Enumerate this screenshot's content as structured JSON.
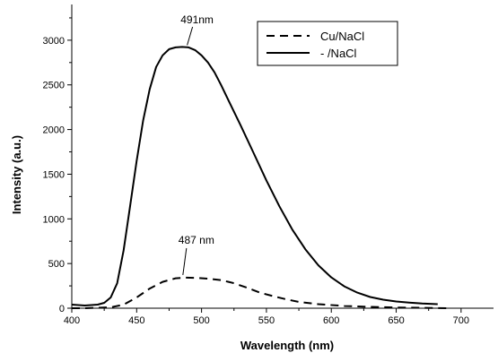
{
  "chart_data": {
    "type": "line",
    "title": "",
    "xlabel": "Wavelength (nm)",
    "ylabel": "Intensity (a.u.)",
    "xlim": [
      400,
      725
    ],
    "ylim": [
      0,
      3400
    ],
    "xticks": [
      400,
      450,
      500,
      550,
      600,
      650,
      700
    ],
    "yticks": [
      0,
      500,
      1000,
      1500,
      2000,
      2500,
      3000
    ],
    "grid": false,
    "legend_position": "top-right",
    "series": [
      {
        "name": "Cu/NaCl",
        "style": "dashed",
        "x": [
          400,
          410,
          420,
          430,
          440,
          450,
          460,
          470,
          480,
          487,
          495,
          505,
          515,
          525,
          535,
          545,
          555,
          565,
          575,
          590,
          610,
          630,
          650,
          670,
          690
        ],
        "y": [
          0,
          0,
          5,
          10,
          40,
          120,
          220,
          295,
          335,
          342,
          340,
          330,
          315,
          280,
          230,
          175,
          135,
          100,
          70,
          45,
          25,
          15,
          8,
          4,
          0
        ]
      },
      {
        "name": "- /NaCl",
        "style": "solid",
        "x": [
          400,
          410,
          420,
          425,
          430,
          435,
          440,
          445,
          450,
          455,
          460,
          465,
          470,
          475,
          480,
          485,
          490,
          495,
          500,
          505,
          510,
          515,
          520,
          530,
          540,
          550,
          560,
          570,
          580,
          590,
          600,
          610,
          620,
          630,
          640,
          650,
          660,
          670,
          682
        ],
        "y": [
          40,
          30,
          40,
          60,
          120,
          280,
          650,
          1150,
          1650,
          2100,
          2450,
          2700,
          2830,
          2900,
          2920,
          2925,
          2920,
          2890,
          2830,
          2750,
          2640,
          2500,
          2350,
          2050,
          1740,
          1430,
          1140,
          880,
          660,
          480,
          345,
          245,
          175,
          125,
          95,
          75,
          62,
          52,
          45
        ]
      }
    ],
    "annotations": [
      {
        "text": "491nm",
        "x": 491,
        "y": 2925
      },
      {
        "text": "487 nm",
        "x": 487,
        "y": 342
      }
    ]
  }
}
